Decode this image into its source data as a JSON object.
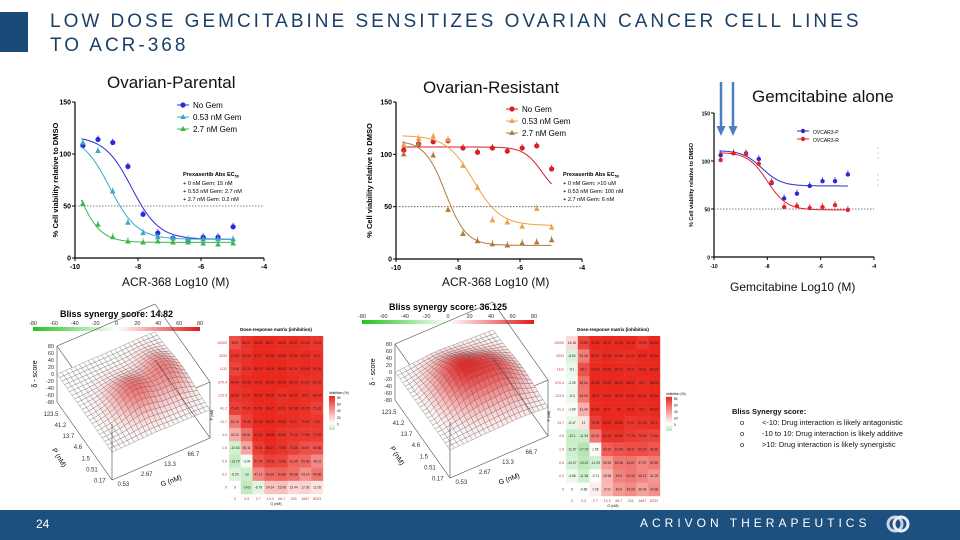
{
  "slide": {
    "title_line1": "LOW DOSE GEMCITABINE SENSITIZES OVARIAN CANCER CELL LINES",
    "title_line2": "TO ACR-368",
    "page_number": "24",
    "brand": "ACRIVON THERAPEUTICS",
    "title_color": "#1c3f66",
    "footer_color": "#1d4f7f"
  },
  "bliss_key": {
    "title": "Bliss Synergy score:",
    "items": [
      {
        "bullet": "o",
        "text": "<-10: Drug interaction is likely antagonistic"
      },
      {
        "bullet": "o",
        "text": "-10 to 10: Drug interaction is likely additive"
      },
      {
        "bullet": "o",
        "text": ">10: Drug interaction is likely synergistic"
      }
    ]
  },
  "chart_data": [
    {
      "type": "scatter",
      "title": "Ovarian-Parental",
      "xlabel": "ACR-368 Log10 (M)",
      "ylabel": "% Cell viability relative to DMSO",
      "xlim": [
        -10,
        -4
      ],
      "ylim": [
        0,
        150
      ],
      "xticks": [
        "-10",
        "-8",
        "-6",
        "-4"
      ],
      "yticks": [
        "0",
        "50",
        "100",
        "150"
      ],
      "reference_line": 50,
      "legend": "top-right",
      "x": [
        -9.75,
        -9.27,
        -8.8,
        -8.32,
        -7.84,
        -7.37,
        -6.89,
        -6.41,
        -5.93,
        -5.46,
        -4.98
      ],
      "series": [
        {
          "name": "No Gem",
          "color": "#2b2bd6",
          "marker": "circle",
          "values": [
            108,
            114,
            111,
            88,
            42,
            24,
            19,
            17,
            20,
            20,
            30
          ]
        },
        {
          "name": "0.53 nM Gem",
          "color": "#3aa9c9",
          "marker": "triangle",
          "values": [
            111,
            103,
            64,
            34,
            24,
            20,
            19,
            18,
            18,
            18,
            18
          ]
        },
        {
          "name": "2.7 nM Gem",
          "color": "#3cb84a",
          "marker": "triangle",
          "values": [
            52,
            32,
            20,
            16,
            15,
            16,
            15,
            15,
            14,
            13,
            14
          ]
        }
      ],
      "annotation": {
        "title": "Prexasertib Abs EC",
        "subscript": "50",
        "lines": [
          "+ 0 nM Gem: 15 nM",
          "+ 0.53 nM Gem: 2.7 nM",
          "+ 2.7 nM Gem: 0.2 nM"
        ]
      }
    },
    {
      "type": "scatter",
      "title": "Ovarian-Resistant",
      "xlabel": "ACR-368 Log10 (M)",
      "ylabel": "% Cell viability relative to DMSO",
      "xlim": [
        -10,
        -4
      ],
      "ylim": [
        0,
        150
      ],
      "xticks": [
        "-10",
        "-8",
        "-6",
        "-4"
      ],
      "yticks": [
        "0",
        "50",
        "100",
        "150"
      ],
      "reference_line": 50,
      "legend": "top-right",
      "x": [
        -9.75,
        -9.27,
        -8.8,
        -8.32,
        -7.84,
        -7.37,
        -6.89,
        -6.41,
        -5.93,
        -5.46,
        -4.98
      ],
      "series": [
        {
          "name": "No Gem",
          "color": "#d81e2a",
          "marker": "circle",
          "values": [
            104,
            110,
            112,
            113,
            106,
            102,
            106,
            103,
            106,
            108,
            86
          ]
        },
        {
          "name": "0.53 nM Gem",
          "color": "#f0a040",
          "marker": "triangle",
          "values": [
            109,
            115,
            117,
            114,
            89,
            68,
            37,
            35,
            31,
            48,
            30
          ]
        },
        {
          "name": "2.7 nM Gem",
          "color": "#b07a3a",
          "marker": "triangle",
          "values": [
            100,
            110,
            99,
            47,
            24,
            17,
            14,
            13,
            15,
            16,
            18
          ]
        }
      ],
      "annotation": {
        "title": "Prexasertib Abs EC",
        "subscript": "50",
        "lines": [
          "+ 0 nM Gem: >10 uM",
          "+ 0.53 nM Gem: 100 nM",
          "+ 2.7 nM Gem: 6 nM"
        ]
      }
    },
    {
      "type": "scatter",
      "title": "Gemcitabine alone",
      "xlabel": "Gemcitabine Log10 (M)",
      "ylabel": "% Cell viability relative to DMSO",
      "xlim": [
        -10,
        -4
      ],
      "ylim": [
        0,
        150
      ],
      "xticks": [
        "-10",
        "-8",
        "-6",
        "-4"
      ],
      "yticks": [
        "0",
        "50",
        "100",
        "150"
      ],
      "reference_line": 50,
      "legend": "top-right",
      "x": [
        -9.75,
        -9.27,
        -8.8,
        -8.32,
        -7.84,
        -7.37,
        -6.89,
        -6.41,
        -5.93,
        -5.46,
        -4.98
      ],
      "series": [
        {
          "name": "OVCAR3-P",
          "color": "#2b2bd6",
          "marker": "circle",
          "values": [
            106,
            108,
            108,
            102,
            77,
            61,
            66,
            74,
            79,
            79,
            86
          ]
        },
        {
          "name": "OVCAR3-R",
          "color": "#e0262a",
          "marker": "circle",
          "values": [
            101,
            108,
            107,
            97,
            78,
            52,
            53,
            51,
            52,
            54,
            49
          ]
        }
      ],
      "arrow_color": "#4a7fc0"
    },
    {
      "type": "surface",
      "title": "Bliss synergy score: 14.82",
      "colorbar_ticks": [
        "-80",
        "-60",
        "-40",
        "-20",
        "0",
        "20",
        "40",
        "60",
        "80"
      ],
      "zlabel": "δ - score",
      "zticks": [
        "80",
        "60",
        "40",
        "20",
        "0",
        "-20",
        "-40",
        "-60",
        "-80"
      ],
      "ylabel": "P (nM)",
      "yticks": [
        "0.17",
        "0.51",
        "1.5",
        "4.6",
        "13.7",
        "41.2",
        "123.5"
      ],
      "xlabel": "G (nM)",
      "xticks": [
        "0.53",
        "2.67",
        "13.3",
        "66.7"
      ]
    },
    {
      "type": "heatmap",
      "title": "Dose-response matrix (inhibition)",
      "xlabel": "G (nM)",
      "ylabel": "P (nM)",
      "legend_title": "inhibition (%)",
      "legend_ticks": [
        "80",
        "60",
        "40",
        "20",
        "0"
      ],
      "x": [
        "0",
        "0.5",
        "2.7",
        "13.3",
        "66.7",
        "333",
        "1667",
        "8333"
      ],
      "y": [
        "10000",
        "3333",
        "1111",
        "370.4",
        "123.5",
        "41.2",
        "13.7",
        "4.6",
        "1.5",
        "0.5",
        "0.2",
        "0"
      ],
      "values": [
        [
          69.8,
          80.57,
          86.09,
          85.77,
          83.02,
          82.97,
          81.25,
          79.43
        ],
        [
          79.23,
          80.06,
          87.17,
          87.56,
          83.85,
          82.95,
          83.37,
          82.1
        ],
        [
          73.46,
          81.15,
          85.75,
          86.06,
          85.02,
          82.31,
          83.63,
          81.95
        ],
        [
          80.46,
          83.46,
          84.6,
          86.33,
          85.16,
          83.23,
          81.37,
          80.29
        ],
        [
          80.56,
          81.57,
          86.52,
          86.75,
          81.34,
          83.02,
          80.9,
          80.44
        ],
        [
          75.46,
          79.43,
          83.51,
          86.27,
          82.32,
          82.58,
          80.75,
          75.26
        ],
        [
          52.74,
          75.46,
          84.06,
          85.75,
          83.33,
          81.9,
          79.97,
          79.2
        ],
        [
          32.22,
          56.51,
          83.02,
          86.98,
          80.35,
          79.16,
          77.85,
          77.52
        ],
        [
          -10.63,
          36.11,
          76.54,
          83.27,
          79.96,
          75.36,
          68.67,
          68.56
        ],
        [
          -13.79,
          -3.04,
          67.96,
          75.03,
          72.88,
          61.05,
          59.08,
          46.11
        ],
        [
          -8.29,
          -12,
          47.13,
          60.23,
          60.86,
          56.68,
          43.15,
          54.56
        ],
        [
          0,
          -14.8,
          -6.79,
          24.14,
          25.08,
          15.44,
          17.93,
          11.05
        ]
      ]
    },
    {
      "type": "surface",
      "title": "Bliss synergy score: 36.125",
      "colorbar_ticks": [
        "-80",
        "-60",
        "-40",
        "-20",
        "0",
        "20",
        "40",
        "60",
        "80"
      ],
      "zlabel": "δ - score",
      "zticks": [
        "80",
        "60",
        "40",
        "20",
        "0",
        "-20",
        "-40",
        "-60",
        "-80"
      ],
      "ylabel": "P (nM)",
      "yticks": [
        "0.17",
        "0.51",
        "1.5",
        "4.6",
        "13.7",
        "41.2",
        "123.5"
      ],
      "xlabel": "G (nM)",
      "xticks": [
        "0.53",
        "2.67",
        "13.3",
        "66.7"
      ]
    },
    {
      "type": "heatmap",
      "title": "Dose-response matrix (inhibition)",
      "xlabel": "G (nM)",
      "ylabel": "P (nM)",
      "legend_title": "inhibition (%)",
      "legend_ticks": [
        "80",
        "60",
        "40",
        "20",
        "0"
      ],
      "x": [
        "0",
        "0.3",
        "2.7",
        "13.3",
        "66.7",
        "333",
        "1667",
        "8333"
      ],
      "y": [
        "10000",
        "3333",
        "1111",
        "370.4",
        "123.5",
        "41.2",
        "13.7",
        "4.6",
        "1.5",
        "0.5",
        "0.2",
        "0"
      ],
      "values": [
        [
          14.15,
          73.69,
          91.36,
          90.17,
          91.06,
          90.44,
          79.09,
          88.53
        ],
        [
          -8.54,
          51.46,
          82.21,
          90.13,
          82.56,
          82.24,
          84.57,
          84.54
        ],
        [
          -5.1,
          68.1,
          84.16,
          89.05,
          84.71,
          83.3,
          84.6,
          86.24
        ],
        [
          -3.25,
          55.64,
          88.05,
          89.09,
          88.33,
          85.07,
          83.2,
          85.03
        ],
        [
          -5.3,
          53.04,
          88.3,
          93.02,
          86.23,
          84.91,
          84.24,
          84.85
        ],
        [
          -1.89,
          31.49,
          82.93,
          87.5,
          86,
          84.8,
          83.1,
          84.22
        ],
        [
          -5.47,
          11,
          75.82,
          84.57,
          83.89,
          79.07,
          81.15,
          81.4
        ],
        [
          -13.1,
          -11.94,
          52.91,
          80.43,
          80.86,
          77.25,
          75.06,
          73.49
        ],
        [
          -11.67,
          -17.79,
          1.55,
          63.22,
          67.56,
          69.6,
          69.79,
          66.46
        ],
        [
          -10.07,
          -15.23,
          -11.25,
          39.92,
          53.36,
          54.67,
          47.97,
          52.69
        ],
        [
          -4.58,
          -11.38,
          -0.71,
          28.96,
          49.5,
          52.94,
          48.21,
          41.29
        ],
        [
          0,
          -0.65,
          7.26,
          27.6,
          40.9,
          45.65,
          36.46,
          44.66
        ]
      ]
    }
  ]
}
